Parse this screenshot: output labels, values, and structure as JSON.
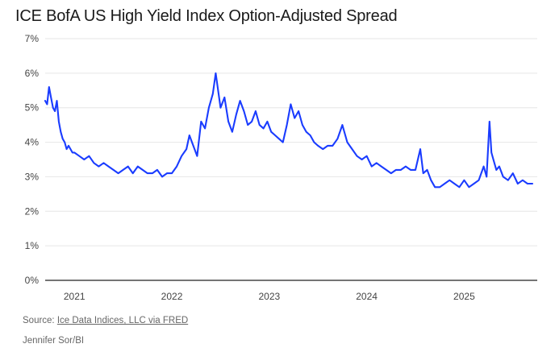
{
  "header": {
    "title": "ICE BofA US High Yield Index Option-Adjusted Spread"
  },
  "footer": {
    "source_prefix": "Source: ",
    "source_link": "Ice Data Indices, LLC via FRED",
    "credit": "Jennifer Sor/BI"
  },
  "colors": {
    "line": "#1a3cff",
    "grid": "#e6e6e6",
    "axis": "#222222",
    "tick_text": "#444444"
  },
  "chart_data": {
    "type": "line",
    "title": "ICE BofA US High Yield Index Option-Adjusted Spread",
    "xlabel": "",
    "ylabel": "",
    "grid": true,
    "ylim": [
      0,
      7
    ],
    "xlim": [
      2020.7,
      2025.75
    ],
    "y_ticks": [
      0,
      1,
      2,
      3,
      4,
      5,
      6,
      7
    ],
    "y_tick_labels": [
      "0%",
      "1%",
      "2%",
      "3%",
      "4%",
      "5%",
      "6%",
      "7%"
    ],
    "x_ticks": [
      2021,
      2022,
      2023,
      2024,
      2025
    ],
    "x_tick_labels": [
      "2021",
      "2022",
      "2023",
      "2024",
      "2025"
    ],
    "series": [
      {
        "name": "ICE BofA US High Yield Index Option-Adjusted Spread",
        "x": [
          2020.7,
          2020.72,
          2020.74,
          2020.76,
          2020.78,
          2020.8,
          2020.82,
          2020.84,
          2020.86,
          2020.88,
          2020.9,
          2020.92,
          2020.94,
          2020.96,
          2020.98,
          2021.0,
          2021.05,
          2021.1,
          2021.15,
          2021.2,
          2021.25,
          2021.3,
          2021.35,
          2021.4,
          2021.45,
          2021.5,
          2021.55,
          2021.6,
          2021.65,
          2021.7,
          2021.75,
          2021.8,
          2021.85,
          2021.9,
          2021.95,
          2022.0,
          2022.05,
          2022.1,
          2022.15,
          2022.18,
          2022.22,
          2022.26,
          2022.3,
          2022.34,
          2022.38,
          2022.42,
          2022.45,
          2022.48,
          2022.5,
          2022.54,
          2022.58,
          2022.62,
          2022.66,
          2022.7,
          2022.74,
          2022.78,
          2022.82,
          2022.86,
          2022.9,
          2022.94,
          2022.98,
          2023.02,
          2023.06,
          2023.1,
          2023.14,
          2023.18,
          2023.22,
          2023.26,
          2023.3,
          2023.34,
          2023.38,
          2023.42,
          2023.46,
          2023.5,
          2023.55,
          2023.6,
          2023.65,
          2023.7,
          2023.75,
          2023.8,
          2023.85,
          2023.9,
          2023.95,
          2024.0,
          2024.05,
          2024.1,
          2024.15,
          2024.2,
          2024.25,
          2024.3,
          2024.35,
          2024.4,
          2024.45,
          2024.5,
          2024.55,
          2024.58,
          2024.62,
          2024.66,
          2024.7,
          2024.75,
          2024.8,
          2024.85,
          2024.9,
          2024.95,
          2025.0,
          2025.05,
          2025.1,
          2025.15,
          2025.2,
          2025.23,
          2025.26,
          2025.28,
          2025.3,
          2025.33,
          2025.36,
          2025.4,
          2025.45,
          2025.5,
          2025.55,
          2025.6,
          2025.65,
          2025.7
        ],
        "values": [
          5.2,
          5.1,
          5.6,
          5.3,
          5.0,
          4.9,
          5.2,
          4.6,
          4.3,
          4.1,
          4.0,
          3.8,
          3.9,
          3.8,
          3.7,
          3.7,
          3.6,
          3.5,
          3.6,
          3.4,
          3.3,
          3.4,
          3.3,
          3.2,
          3.1,
          3.2,
          3.3,
          3.1,
          3.3,
          3.2,
          3.1,
          3.1,
          3.2,
          3.0,
          3.1,
          3.1,
          3.3,
          3.6,
          3.8,
          4.2,
          3.9,
          3.6,
          4.6,
          4.4,
          5.0,
          5.4,
          6.0,
          5.4,
          5.0,
          5.3,
          4.6,
          4.3,
          4.8,
          5.2,
          4.9,
          4.5,
          4.6,
          4.9,
          4.5,
          4.4,
          4.6,
          4.3,
          4.2,
          4.1,
          4.0,
          4.5,
          5.1,
          4.7,
          4.9,
          4.5,
          4.3,
          4.2,
          4.0,
          3.9,
          3.8,
          3.9,
          3.9,
          4.1,
          4.5,
          4.0,
          3.8,
          3.6,
          3.5,
          3.6,
          3.3,
          3.4,
          3.3,
          3.2,
          3.1,
          3.2,
          3.2,
          3.3,
          3.2,
          3.2,
          3.8,
          3.1,
          3.2,
          2.9,
          2.7,
          2.7,
          2.8,
          2.9,
          2.8,
          2.7,
          2.9,
          2.7,
          2.8,
          2.9,
          3.3,
          3.0,
          4.6,
          3.7,
          3.5,
          3.2,
          3.3,
          3.0,
          2.9,
          3.1,
          2.8,
          2.9,
          2.8,
          2.8
        ]
      }
    ]
  }
}
